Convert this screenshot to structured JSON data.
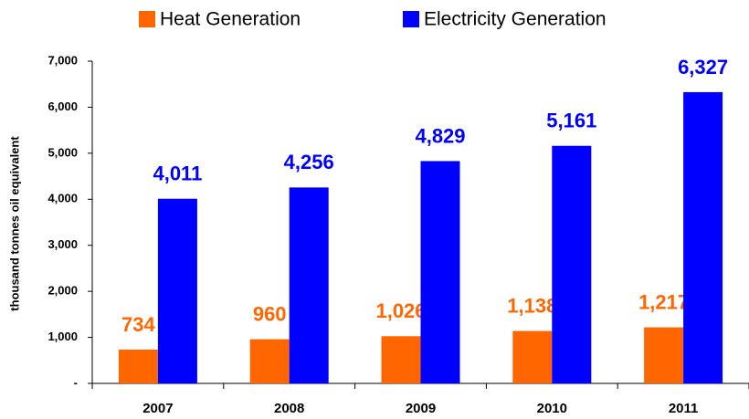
{
  "chart_data": {
    "type": "bar",
    "categories": [
      "2007",
      "2008",
      "2009",
      "2010",
      "2011"
    ],
    "series": [
      {
        "name": "Heat Generation",
        "color": "#ff6600",
        "values": [
          734,
          960,
          1026,
          1138,
          1217
        ],
        "value_labels": [
          "734",
          "960",
          "1,026",
          "1,138",
          "1,217"
        ]
      },
      {
        "name": "Electricity Generation",
        "color": "#0000ff",
        "values": [
          4011,
          4256,
          4829,
          5161,
          6327
        ],
        "value_labels": [
          "4,011",
          "4,256",
          "4,829",
          "5,161",
          "6,327"
        ]
      }
    ],
    "y_label": "thousand tonnes oil equivalent",
    "ylim": [
      0,
      7000
    ],
    "yticks": [
      {
        "value": 0,
        "label": "-"
      },
      {
        "value": 1000,
        "label": "1,000"
      },
      {
        "value": 2000,
        "label": "2,000"
      },
      {
        "value": 3000,
        "label": "3,000"
      },
      {
        "value": 4000,
        "label": "4,000"
      },
      {
        "value": 5000,
        "label": "5,000"
      },
      {
        "value": 6000,
        "label": "6,000"
      },
      {
        "value": 7000,
        "label": "7,000"
      }
    ],
    "legend": "top"
  }
}
